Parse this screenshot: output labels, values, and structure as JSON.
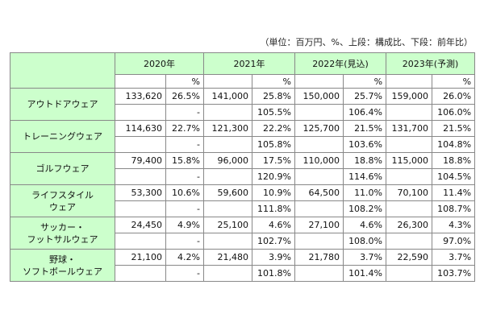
{
  "note": "（単位：百万円、%、上段：構成比、下段：前年比）",
  "header": {
    "years": [
      "2020年",
      "2021年",
      "2022年(見込)",
      "2023年(予測)"
    ],
    "unit": "%"
  },
  "rows": [
    {
      "label": [
        "アウトドアウェア"
      ],
      "cells": [
        [
          "133,620",
          "26.5%",
          "-"
        ],
        [
          "141,000",
          "25.8%",
          "105.5%"
        ],
        [
          "150,000",
          "25.7%",
          "106.4%"
        ],
        [
          "159,000",
          "26.0%",
          "106.0%"
        ]
      ]
    },
    {
      "label": [
        "トレーニングウェア"
      ],
      "cells": [
        [
          "114,630",
          "22.7%",
          "-"
        ],
        [
          "121,300",
          "22.2%",
          "105.8%"
        ],
        [
          "125,700",
          "21.5%",
          "103.6%"
        ],
        [
          "131,700",
          "21.5%",
          "104.8%"
        ]
      ]
    },
    {
      "label": [
        "ゴルフウェア"
      ],
      "cells": [
        [
          "79,400",
          "15.8%",
          "-"
        ],
        [
          "96,000",
          "17.5%",
          "120.9%"
        ],
        [
          "110,000",
          "18.8%",
          "114.6%"
        ],
        [
          "115,000",
          "18.8%",
          "104.5%"
        ]
      ]
    },
    {
      "label": [
        "ライフスタイル",
        "ウェア"
      ],
      "cells": [
        [
          "53,300",
          "10.6%",
          "-"
        ],
        [
          "59,600",
          "10.9%",
          "111.8%"
        ],
        [
          "64,500",
          "11.0%",
          "108.2%"
        ],
        [
          "70,100",
          "11.4%",
          "108.7%"
        ]
      ]
    },
    {
      "label": [
        "サッカー・",
        "フットサルウェア"
      ],
      "cells": [
        [
          "24,450",
          "4.9%",
          "-"
        ],
        [
          "25,100",
          "4.6%",
          "102.7%"
        ],
        [
          "27,100",
          "4.6%",
          "108.0%"
        ],
        [
          "26,300",
          "4.3%",
          "97.0%"
        ]
      ]
    },
    {
      "label": [
        "野球・",
        "ソフトボールウェア"
      ],
      "cells": [
        [
          "21,100",
          "4.2%",
          "-"
        ],
        [
          "21,480",
          "3.9%",
          "101.8%"
        ],
        [
          "21,780",
          "3.7%",
          "101.4%"
        ],
        [
          "22,590",
          "3.7%",
          "103.7%"
        ]
      ]
    }
  ]
}
